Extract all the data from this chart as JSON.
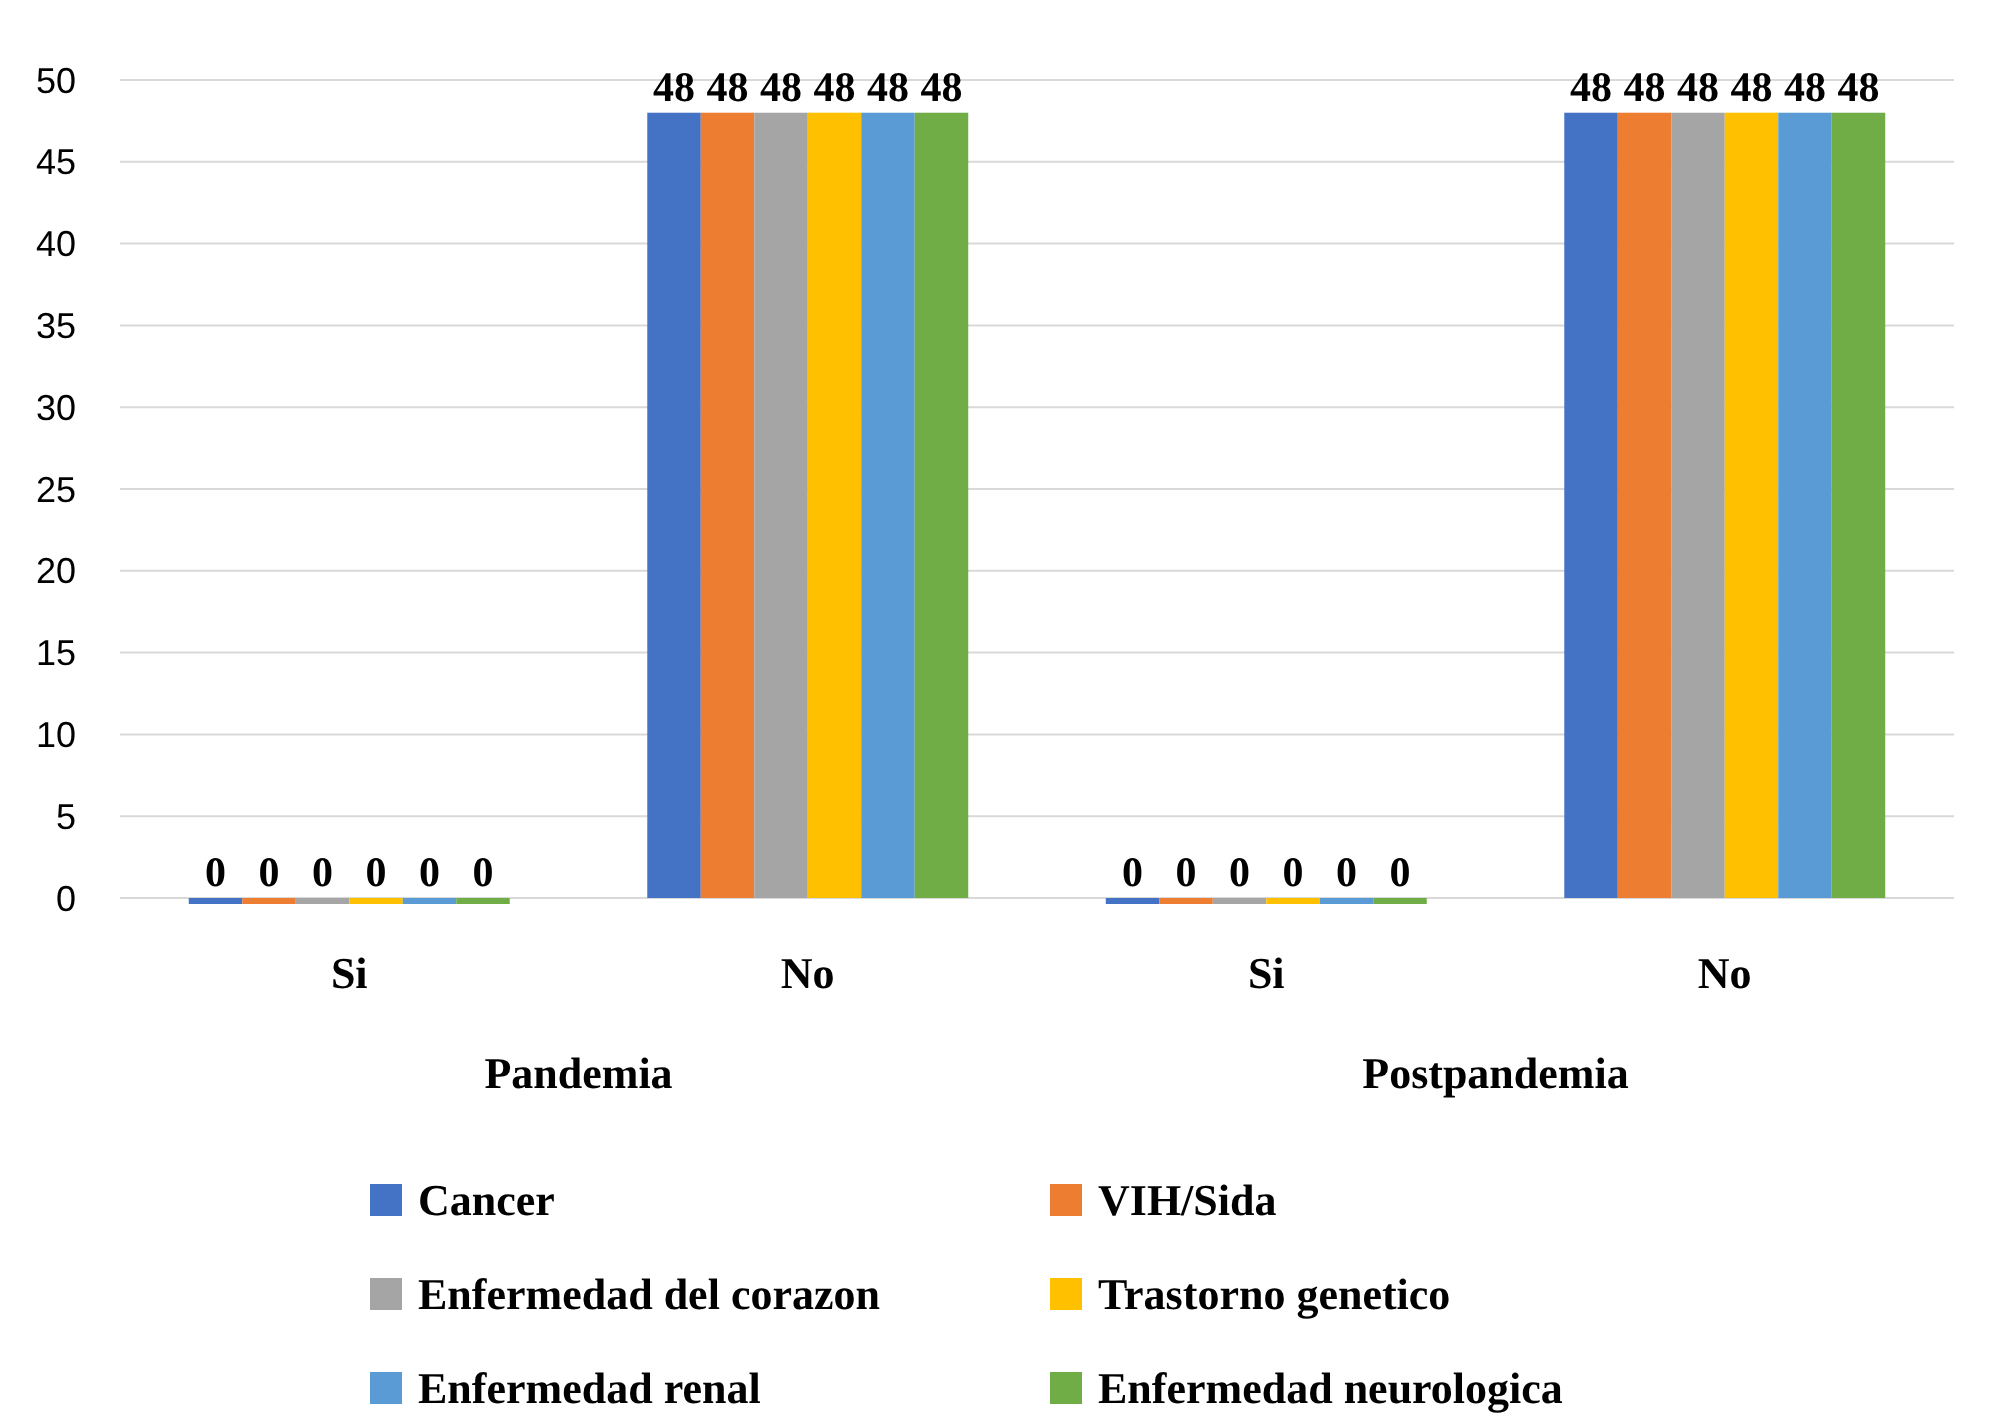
{
  "chart_data": {
    "type": "bar",
    "categories": [
      "Si",
      "No",
      "Si",
      "No"
    ],
    "annotations": [
      "Pandemia",
      "Postpandemia"
    ],
    "series": [
      {
        "name": "Cancer",
        "color": "#4472c4",
        "values": [
          0,
          48,
          0,
          48
        ]
      },
      {
        "name": "VIH/Sida",
        "color": "#ed7d31",
        "values": [
          0,
          48,
          0,
          48
        ]
      },
      {
        "name": "Enfermedad del corazon",
        "color": "#a5a5a5",
        "values": [
          0,
          48,
          0,
          48
        ]
      },
      {
        "name": "Trastorno genetico",
        "color": "#ffc000",
        "values": [
          0,
          48,
          0,
          48
        ]
      },
      {
        "name": "Enfermedad renal",
        "color": "#5b9bd5",
        "values": [
          0,
          48,
          0,
          48
        ]
      },
      {
        "name": "Enfermedad neurologica",
        "color": "#70ad47",
        "values": [
          0,
          48,
          0,
          48
        ]
      }
    ],
    "ylim": [
      0,
      50
    ],
    "yticks": [
      0,
      5,
      10,
      15,
      20,
      25,
      30,
      35,
      40,
      45,
      50
    ],
    "grid": "y",
    "data_labels": true,
    "legend": "bottom"
  }
}
